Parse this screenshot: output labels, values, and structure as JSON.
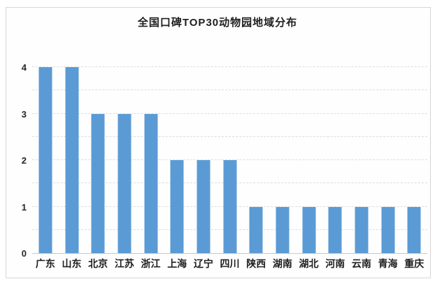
{
  "chart_data": {
    "type": "bar",
    "title": "全国口碑TOP30动物园地域分布",
    "categories": [
      "广东",
      "山东",
      "北京",
      "江苏",
      "浙江",
      "上海",
      "辽宁",
      "四川",
      "陕西",
      "湖南",
      "湖北",
      "河南",
      "云南",
      "青海",
      "重庆"
    ],
    "values": [
      4,
      4,
      3,
      3,
      3,
      2,
      2,
      2,
      1,
      1,
      1,
      1,
      1,
      1,
      1
    ],
    "xlabel": "",
    "ylabel": "",
    "ylim": [
      0,
      4
    ],
    "y_ticks": [
      0,
      1,
      2,
      3,
      4
    ],
    "gridline_interval": 0.5,
    "grid": "on",
    "legend": "none",
    "colors": {
      "bar": "#5B9BD5",
      "gridline": "#dcdcdc",
      "axis_line": "#c9c9c9",
      "text": "#1f1f1f",
      "frame_border": "#d6d6d6"
    }
  }
}
